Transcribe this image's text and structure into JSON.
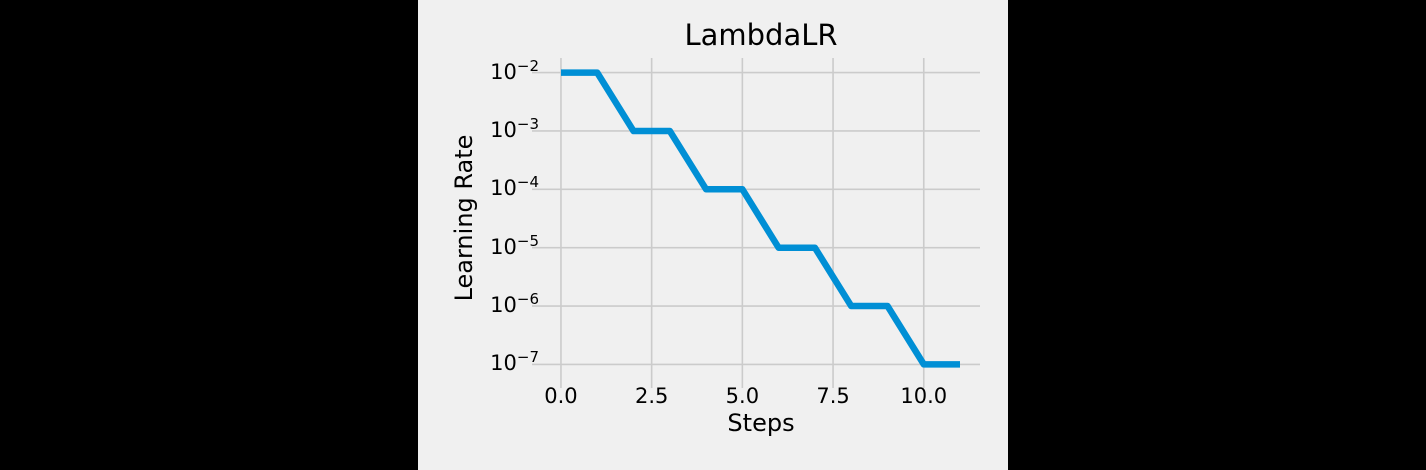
{
  "chart_data": {
    "type": "line",
    "title": "LambdaLR",
    "xlabel": "Steps",
    "ylabel": "Learning Rate",
    "x": [
      0,
      1,
      2,
      3,
      4,
      5,
      6,
      7,
      8,
      9,
      10,
      11
    ],
    "y": [
      0.01,
      0.01,
      0.001,
      0.001,
      0.0001,
      0.0001,
      1e-05,
      1e-05,
      1e-06,
      1e-06,
      1e-07,
      1e-07
    ],
    "yscale": "log",
    "xlim": [
      -0.55,
      11.55
    ],
    "ylim_exp": [
      -7.25,
      -1.75
    ],
    "xticks": [
      "0.0",
      "2.5",
      "5.0",
      "7.5",
      "10.0"
    ],
    "xtick_values": [
      0,
      2.5,
      5,
      7.5,
      10
    ],
    "yticks": [
      {
        "base": "10",
        "exp": "−2"
      },
      {
        "base": "10",
        "exp": "−3"
      },
      {
        "base": "10",
        "exp": "−4"
      },
      {
        "base": "10",
        "exp": "−5"
      },
      {
        "base": "10",
        "exp": "−6"
      },
      {
        "base": "10",
        "exp": "−7"
      }
    ],
    "ytick_exponents": [
      -2,
      -3,
      -4,
      -5,
      -6,
      -7
    ],
    "grid": true,
    "legend": "none",
    "line_width": 6.5,
    "colors": {
      "line": "#008fd5",
      "background": "#f0f0f0",
      "outer_background": "#000000",
      "grid": "#cbcbcb",
      "text": "#000000"
    }
  }
}
